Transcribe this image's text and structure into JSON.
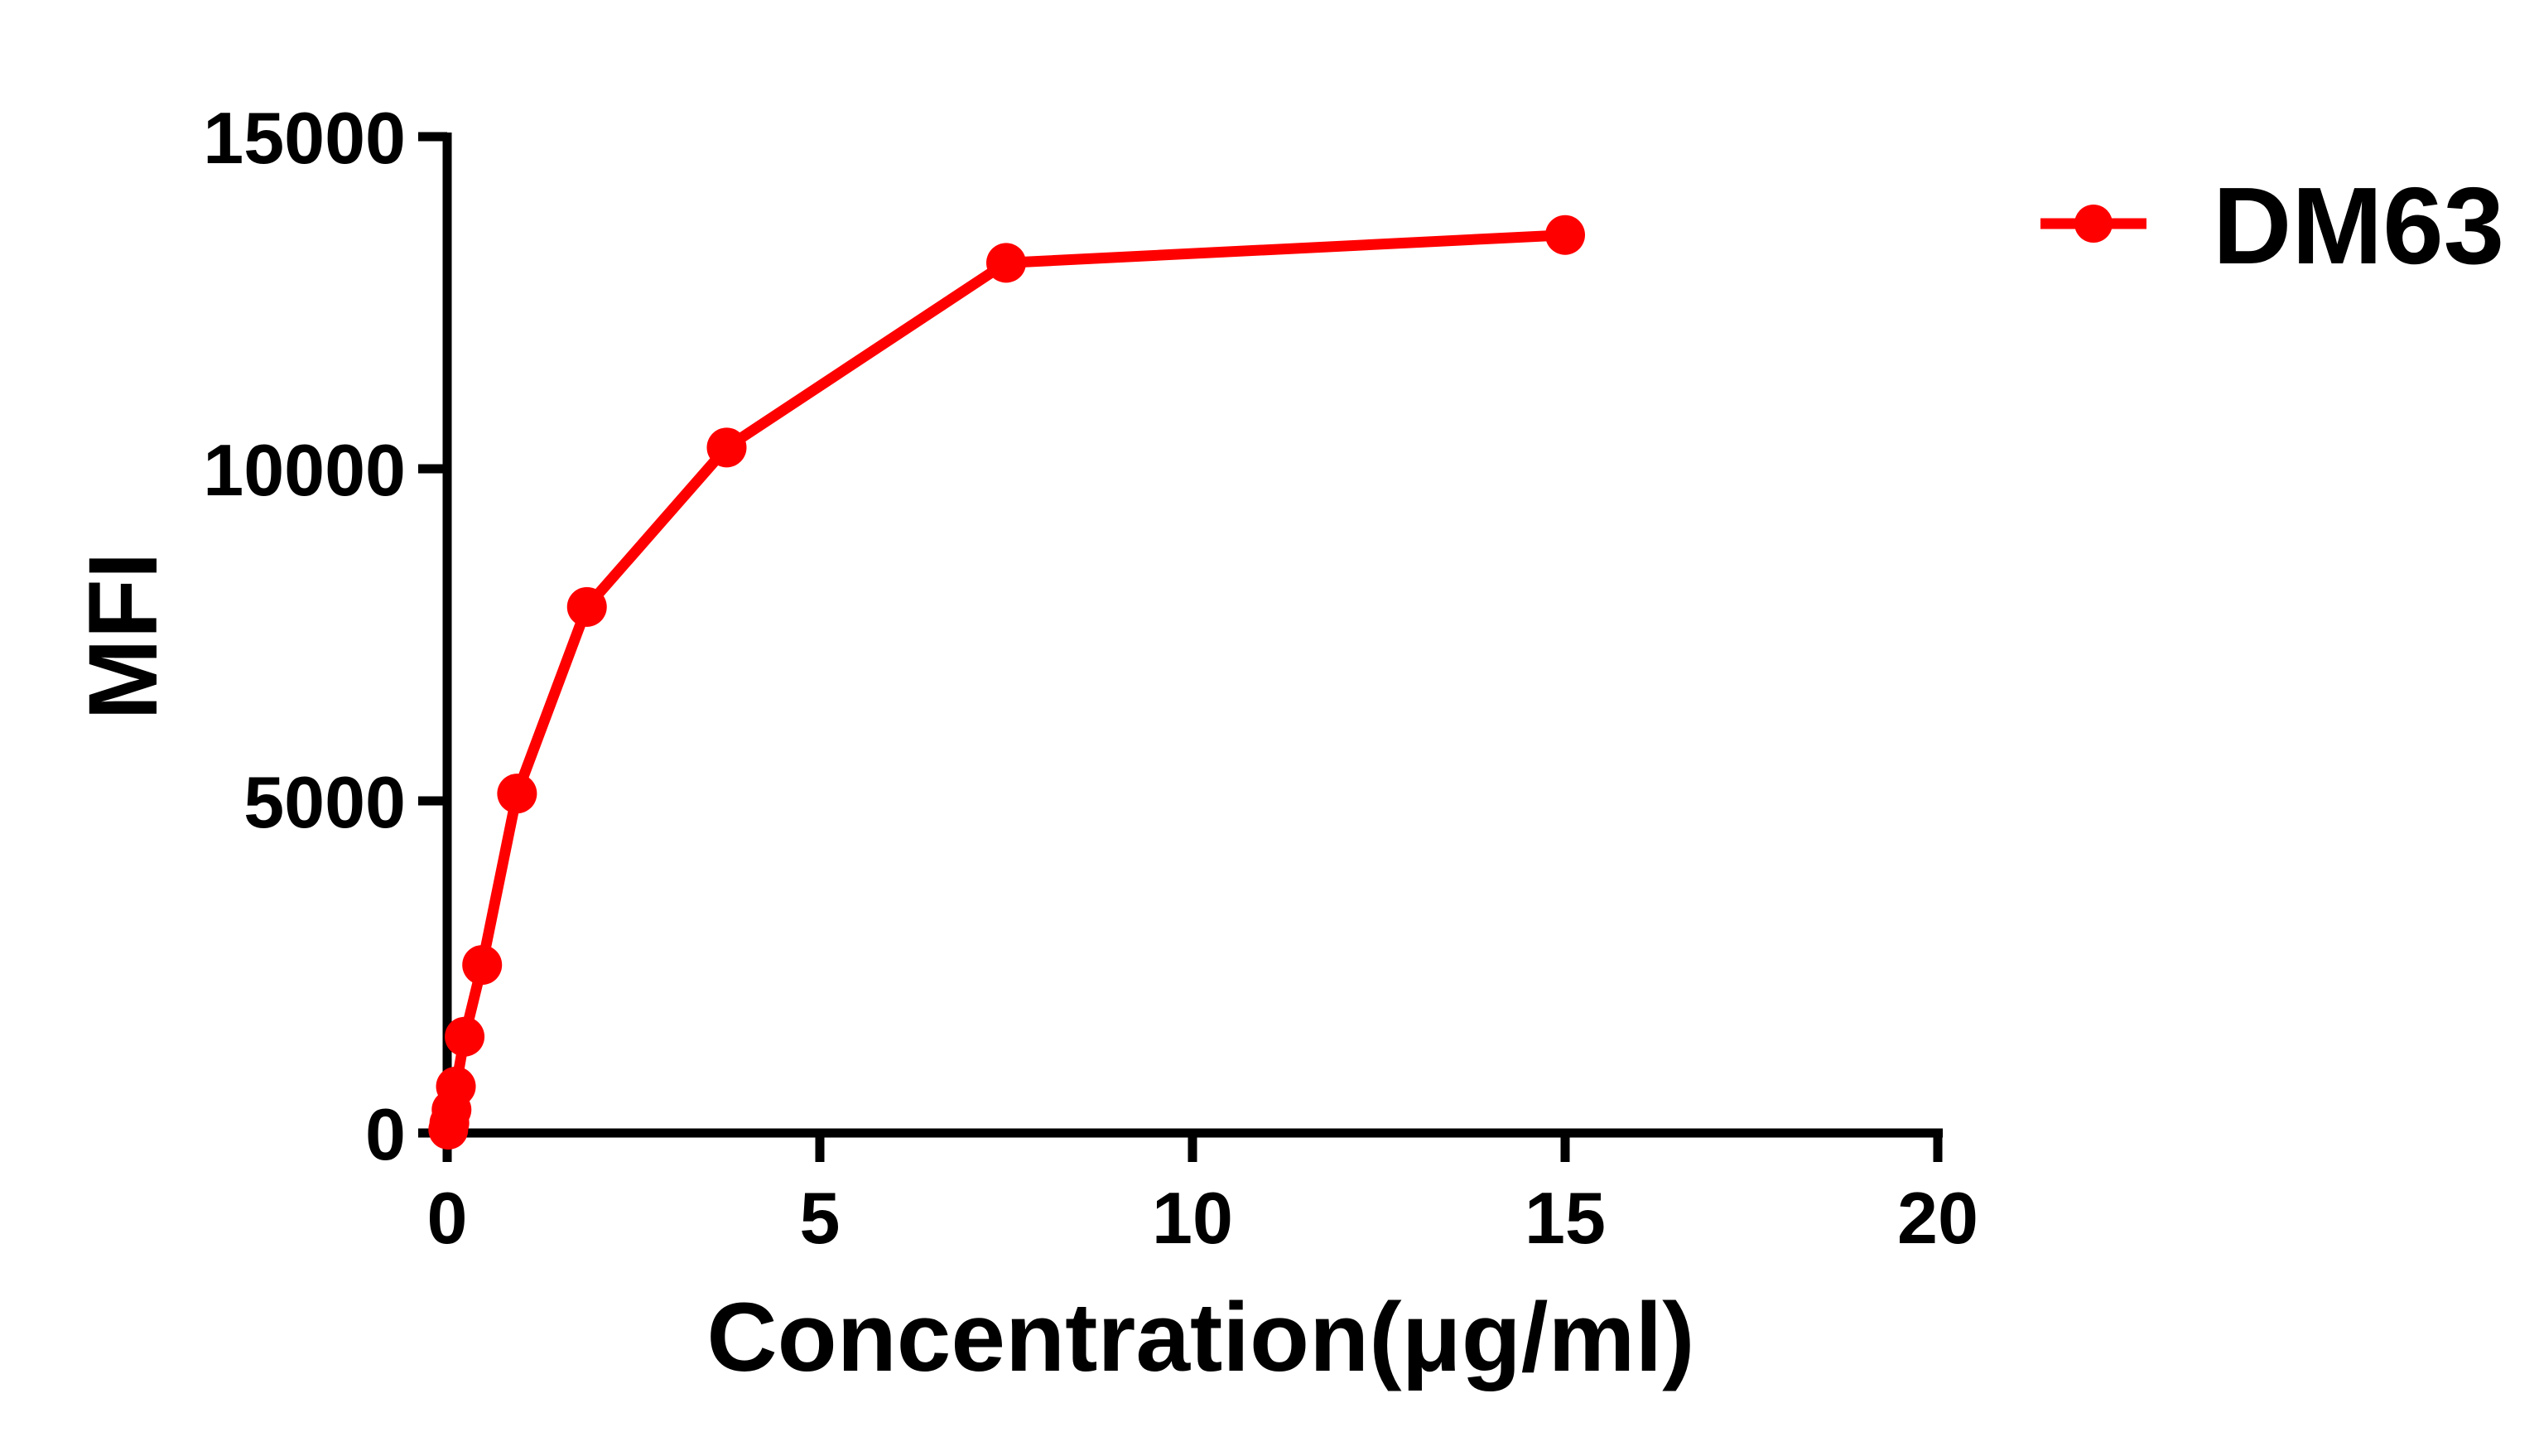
{
  "chart_data": {
    "type": "line",
    "title": "",
    "xlabel": "Concentration(μg/ml)",
    "ylabel": "MFI",
    "xlim": [
      0,
      20
    ],
    "ylim": [
      0,
      15000
    ],
    "x_ticks": [
      0,
      5,
      10,
      15,
      20
    ],
    "y_ticks": [
      0,
      5000,
      10000,
      15000
    ],
    "x_tick_labels": [
      "0",
      "5",
      "10",
      "15",
      "20"
    ],
    "y_tick_labels": [
      "0",
      "5000",
      "10000",
      "15000"
    ],
    "grid": false,
    "legend_position": "top-right",
    "series": [
      {
        "name": "DM63",
        "color": "#FF0000",
        "marker": "circle",
        "x": [
          0.0146,
          0.0293,
          0.0586,
          0.117,
          0.234,
          0.469,
          0.9375,
          1.875,
          3.75,
          7.5,
          15
        ],
        "values": [
          50,
          150,
          350,
          700,
          1450,
          2530,
          5110,
          7920,
          10320,
          13100,
          13520
        ]
      }
    ]
  },
  "legend": {
    "items": [
      {
        "label": "DM63",
        "color": "#FF0000"
      }
    ]
  }
}
